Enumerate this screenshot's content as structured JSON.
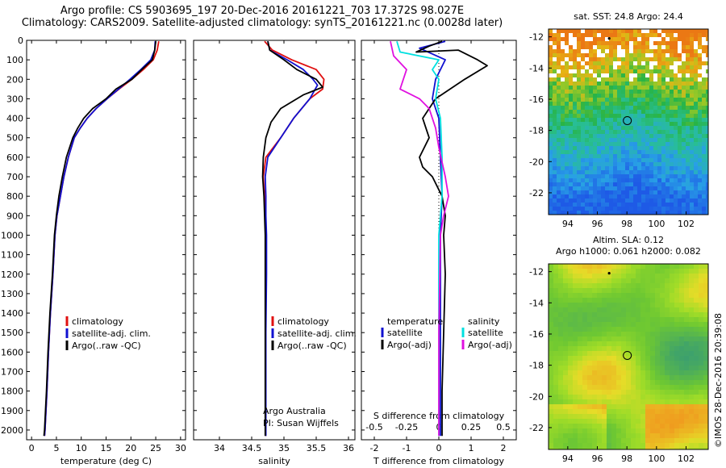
{
  "header": {
    "line1": "Argo profile: CS 5903695_197 20-Dec-2016 20161221_703 17.372S 98.027E",
    "line2": "Climatology: CARS2009. Satellite-adjusted climatology: synTS_20161221.nc (0.0028d later)"
  },
  "timestamp": "©IMOS 28-Dec-2016 20:39:08",
  "colors": {
    "climatology": "#e01010",
    "satellite": "#1010d0",
    "argo": "#000000",
    "sal_sat": "#00e0e0",
    "sal_argo": "#e010e0"
  },
  "chart_data": [
    {
      "type": "line",
      "panel": "temperature",
      "xlabel": "temperature (deg C)",
      "xlim": [
        -1,
        31
      ],
      "ylim": [
        2050,
        0
      ],
      "xticks": [
        "0",
        "5",
        "10",
        "15",
        "20",
        "25",
        "30"
      ],
      "xtick_values": [
        0,
        5,
        10,
        15,
        20,
        25,
        30
      ],
      "yticks": [
        "0",
        "100",
        "200",
        "300",
        "400",
        "500",
        "600",
        "700",
        "800",
        "900",
        "1000",
        "1100",
        "1200",
        "1300",
        "1400",
        "1500",
        "1600",
        "1700",
        "1800",
        "1900",
        "2000"
      ],
      "ytick_values": [
        0,
        100,
        200,
        300,
        400,
        500,
        600,
        700,
        800,
        900,
        1000,
        1100,
        1200,
        1300,
        1400,
        1500,
        1600,
        1700,
        1800,
        1900,
        2000
      ],
      "legend": [
        "climatology",
        "satellite-adj. clim.",
        "Argo(..raw -QC)"
      ],
      "series": [
        {
          "name": "climatology",
          "color": "#e01010",
          "points": [
            [
              25.6,
              5
            ],
            [
              25.3,
              50
            ],
            [
              24.5,
              100
            ],
            [
              22.5,
              150
            ],
            [
              20.2,
              200
            ],
            [
              17.6,
              250
            ],
            [
              15.2,
              300
            ],
            [
              13.0,
              350
            ],
            [
              11.2,
              400
            ],
            [
              9.8,
              450
            ],
            [
              8.6,
              500
            ],
            [
              7.4,
              600
            ],
            [
              6.5,
              700
            ],
            [
              5.8,
              800
            ],
            [
              5.1,
              900
            ],
            [
              4.7,
              1000
            ],
            [
              4.3,
              1200
            ],
            [
              3.8,
              1400
            ],
            [
              3.4,
              1600
            ],
            [
              3.1,
              1800
            ],
            [
              2.7,
              2000
            ],
            [
              2.6,
              2030
            ]
          ]
        },
        {
          "name": "satellite-adj. clim.",
          "color": "#1010d0",
          "points": [
            [
              24.9,
              5
            ],
            [
              24.8,
              50
            ],
            [
              24.0,
              100
            ],
            [
              22.0,
              150
            ],
            [
              19.8,
              200
            ],
            [
              17.5,
              250
            ],
            [
              15.2,
              300
            ],
            [
              13.0,
              350
            ],
            [
              11.2,
              400
            ],
            [
              9.8,
              450
            ],
            [
              8.6,
              500
            ],
            [
              7.4,
              600
            ],
            [
              6.5,
              700
            ],
            [
              5.8,
              800
            ],
            [
              5.1,
              900
            ],
            [
              4.7,
              1000
            ],
            [
              4.3,
              1200
            ],
            [
              3.8,
              1400
            ],
            [
              3.4,
              1600
            ],
            [
              3.1,
              1800
            ],
            [
              2.7,
              2000
            ],
            [
              2.6,
              2030
            ]
          ]
        },
        {
          "name": "Argo(..raw -QC)",
          "color": "#000000",
          "points": [
            [
              25.0,
              5
            ],
            [
              24.8,
              50
            ],
            [
              24.3,
              100
            ],
            [
              22.2,
              150
            ],
            [
              20.2,
              200
            ],
            [
              17.0,
              250
            ],
            [
              15.0,
              300
            ],
            [
              12.3,
              350
            ],
            [
              10.5,
              400
            ],
            [
              9.3,
              450
            ],
            [
              8.3,
              500
            ],
            [
              7.0,
              600
            ],
            [
              6.2,
              700
            ],
            [
              5.5,
              800
            ],
            [
              5.0,
              900
            ],
            [
              4.6,
              1000
            ],
            [
              4.2,
              1200
            ],
            [
              3.7,
              1400
            ],
            [
              3.3,
              1600
            ],
            [
              3.0,
              1800
            ],
            [
              2.6,
              2000
            ],
            [
              2.5,
              2030
            ]
          ]
        }
      ]
    },
    {
      "type": "line",
      "panel": "salinity",
      "xlabel": "salinity",
      "xlim": [
        33.6,
        36.1
      ],
      "ylim": [
        2050,
        0
      ],
      "xticks": [
        "34",
        "34.5",
        "35",
        "35.5",
        "36"
      ],
      "xtick_values": [
        34,
        34.5,
        35,
        35.5,
        36
      ],
      "legend": [
        "climatology",
        "satellite-adj. clim.",
        "Argo(..raw -QC)"
      ],
      "annotation": [
        "Argo Australia",
        "PI: Susan Wijffels"
      ],
      "series": [
        {
          "name": "climatology",
          "color": "#e01010",
          "points": [
            [
              34.7,
              5
            ],
            [
              34.82,
              50
            ],
            [
              35.12,
              100
            ],
            [
              35.5,
              150
            ],
            [
              35.62,
              200
            ],
            [
              35.6,
              250
            ],
            [
              35.4,
              300
            ],
            [
              35.15,
              400
            ],
            [
              34.95,
              500
            ],
            [
              34.72,
              600
            ],
            [
              34.68,
              700
            ],
            [
              34.7,
              800
            ],
            [
              34.71,
              900
            ],
            [
              34.72,
              1000
            ],
            [
              34.72,
              1200
            ],
            [
              34.72,
              1500
            ],
            [
              34.72,
              1800
            ],
            [
              34.72,
              2030
            ]
          ]
        },
        {
          "name": "satellite-adj. clim.",
          "color": "#1010d0",
          "points": [
            [
              34.75,
              5
            ],
            [
              34.78,
              50
            ],
            [
              35.05,
              100
            ],
            [
              35.3,
              150
            ],
            [
              35.45,
              200
            ],
            [
              35.52,
              230
            ],
            [
              35.4,
              300
            ],
            [
              35.15,
              400
            ],
            [
              34.95,
              500
            ],
            [
              34.75,
              600
            ],
            [
              34.71,
              700
            ],
            [
              34.72,
              800
            ],
            [
              34.72,
              900
            ],
            [
              34.73,
              1000
            ],
            [
              34.73,
              1200
            ],
            [
              34.72,
              1500
            ],
            [
              34.72,
              1800
            ],
            [
              34.72,
              2030
            ]
          ]
        },
        {
          "name": "Argo(..raw -QC)",
          "color": "#000000",
          "points": [
            [
              34.75,
              5
            ],
            [
              34.78,
              50
            ],
            [
              35.0,
              100
            ],
            [
              35.2,
              150
            ],
            [
              35.5,
              200
            ],
            [
              35.6,
              240
            ],
            [
              35.3,
              280
            ],
            [
              34.95,
              350
            ],
            [
              34.8,
              420
            ],
            [
              34.72,
              500
            ],
            [
              34.68,
              600
            ],
            [
              34.67,
              700
            ],
            [
              34.69,
              800
            ],
            [
              34.7,
              900
            ],
            [
              34.71,
              1000
            ],
            [
              34.71,
              1200
            ],
            [
              34.71,
              1500
            ],
            [
              34.71,
              1800
            ],
            [
              34.71,
              2030
            ]
          ]
        }
      ]
    },
    {
      "type": "line",
      "panel": "differences",
      "xlabel": "T difference from climatology",
      "xlabel_top": "S difference from climatology",
      "xlim": [
        -2.4,
        2.4
      ],
      "ylim": [
        2050,
        0
      ],
      "xticks": [
        "-2",
        "-1",
        "0",
        "1",
        "2"
      ],
      "xtick_values": [
        -2,
        -1,
        0,
        1,
        2
      ],
      "xticks_top": [
        "-0.5",
        "-0.25",
        "0",
        "0.25",
        "0.5"
      ],
      "xtick_values_top": [
        -0.5,
        -0.25,
        0,
        0.25,
        0.5
      ],
      "legend_left": {
        "title": "temperature",
        "items": [
          "satellite",
          "Argo(-adj)"
        ]
      },
      "legend_right": {
        "title": "salinity",
        "items": [
          "satellite",
          "Argo(-adj)"
        ]
      },
      "series": [
        {
          "name": "temperature satellite",
          "color": "#1010d0",
          "points": [
            [
              0.2,
              5
            ],
            [
              -0.6,
              40
            ],
            [
              0.2,
              100
            ],
            [
              -0.1,
              200
            ],
            [
              -0.2,
              300
            ],
            [
              0.0,
              400
            ],
            [
              0.05,
              600
            ],
            [
              0.1,
              800
            ],
            [
              0.05,
              1000
            ],
            [
              0.05,
              1500
            ],
            [
              0.05,
              2030
            ]
          ]
        },
        {
          "name": "temperature Argo(-adj)",
          "color": "#000000",
          "points": [
            [
              0.1,
              5
            ],
            [
              -0.3,
              30
            ],
            [
              -0.7,
              60
            ],
            [
              0.6,
              50
            ],
            [
              1.2,
              100
            ],
            [
              1.5,
              130
            ],
            [
              0.8,
              200
            ],
            [
              -0.1,
              300
            ],
            [
              -0.5,
              400
            ],
            [
              -0.4,
              450
            ],
            [
              -0.3,
              500
            ],
            [
              -0.6,
              600
            ],
            [
              -0.5,
              650
            ],
            [
              -0.2,
              700
            ],
            [
              0.1,
              800
            ],
            [
              0.2,
              900
            ],
            [
              0.15,
              1000
            ],
            [
              0.2,
              1200
            ],
            [
              0.15,
              1500
            ],
            [
              0.1,
              1800
            ],
            [
              0.1,
              2030
            ]
          ]
        },
        {
          "name": "salinity satellite",
          "color": "#00e0e0",
          "points": [
            [
              -1.3,
              5
            ],
            [
              -1.2,
              60
            ],
            [
              0.0,
              100
            ],
            [
              -0.2,
              150
            ],
            [
              0.0,
              200
            ],
            [
              -0.1,
              300
            ],
            [
              0.05,
              400
            ],
            [
              0.1,
              600
            ],
            [
              0.1,
              800
            ],
            [
              0.0,
              1000
            ],
            [
              0.0,
              1500
            ],
            [
              0.0,
              2030
            ]
          ]
        },
        {
          "name": "salinity Argo(-adj)",
          "color": "#e010e0",
          "points": [
            [
              -1.5,
              5
            ],
            [
              -1.4,
              80
            ],
            [
              -1.0,
              150
            ],
            [
              -1.2,
              250
            ],
            [
              -0.6,
              300
            ],
            [
              -0.3,
              350
            ],
            [
              -0.1,
              450
            ],
            [
              0.0,
              550
            ],
            [
              0.2,
              700
            ],
            [
              0.3,
              800
            ],
            [
              0.15,
              900
            ],
            [
              0.05,
              1000
            ],
            [
              0.0,
              1500
            ],
            [
              0.0,
              2030
            ]
          ]
        }
      ]
    },
    {
      "type": "heatmap",
      "panel": "map-sst",
      "title": "sat. SST: 24.8  Argo: 24.4",
      "xticks": [
        "94",
        "96",
        "98",
        "100",
        "102"
      ],
      "xtick_values": [
        94,
        96,
        98,
        100,
        102
      ],
      "yticks": [
        "-12",
        "-14",
        "-16",
        "-18",
        "-20",
        "-22"
      ],
      "ytick_values": [
        -12,
        -14,
        -16,
        -18,
        -20,
        -22
      ],
      "xlim": [
        92.7,
        103.5
      ],
      "ylim": [
        -23.4,
        -11.5
      ],
      "argo_position": [
        98.027,
        -17.372
      ],
      "previous_position": [
        96.8,
        -12.1
      ]
    },
    {
      "type": "heatmap",
      "panel": "map-sla",
      "title": "Altim. SLA: 0.12",
      "subtitle": "Argo h1000: 0.061  h2000: 0.082",
      "xticks": [
        "94",
        "96",
        "98",
        "100",
        "102"
      ],
      "xtick_values": [
        94,
        96,
        98,
        100,
        102
      ],
      "yticks": [
        "-12",
        "-14",
        "-16",
        "-18",
        "-20",
        "-22"
      ],
      "ytick_values": [
        -12,
        -14,
        -16,
        -18,
        -20,
        -22
      ],
      "xlim": [
        92.7,
        103.5
      ],
      "ylim": [
        -23.4,
        -11.5
      ],
      "argo_position": [
        98.027,
        -17.372
      ],
      "previous_position": [
        96.8,
        -12.1
      ]
    }
  ]
}
